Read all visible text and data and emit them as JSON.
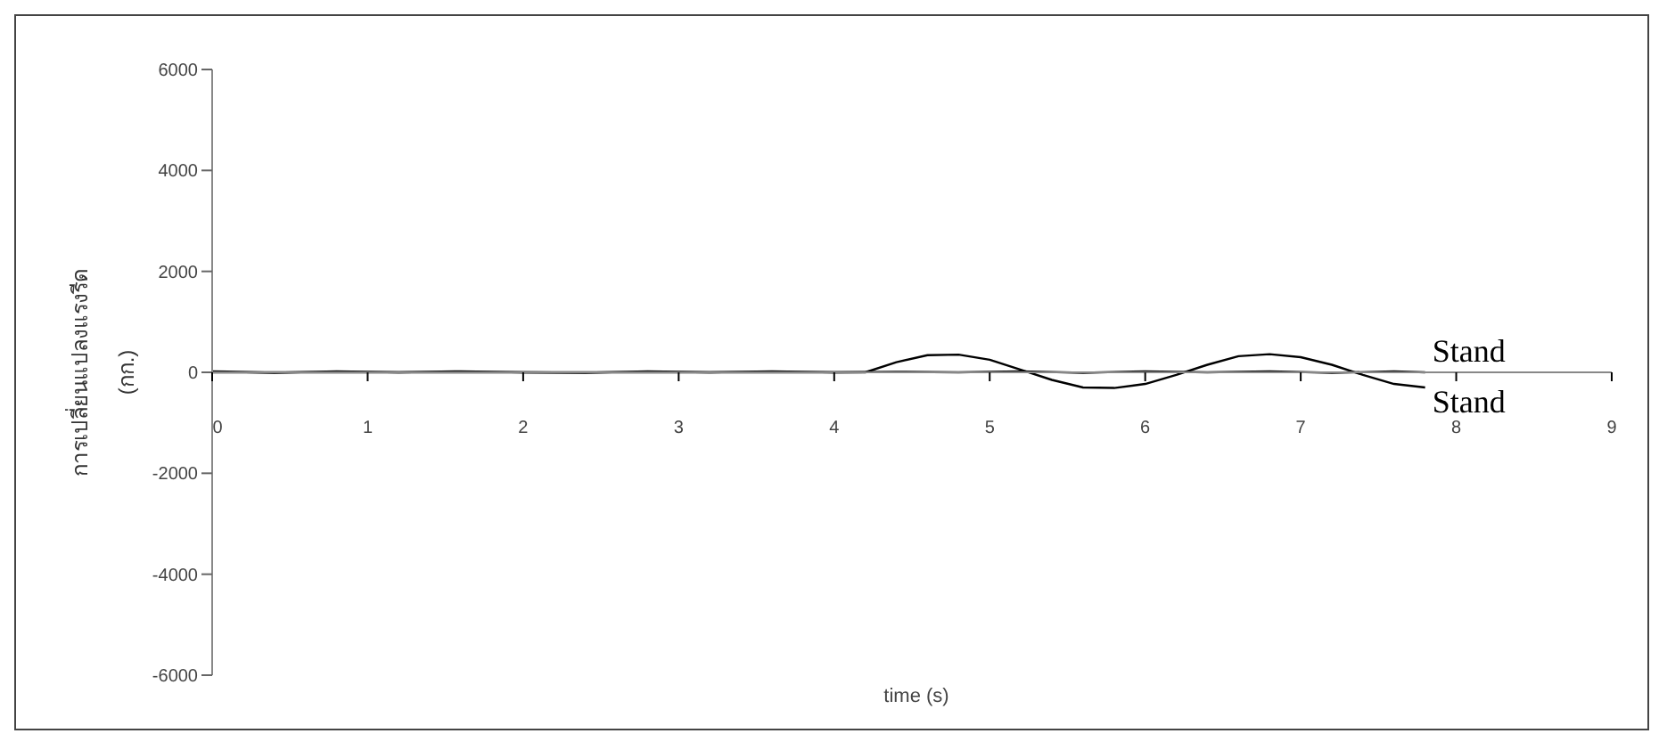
{
  "chart_data": {
    "type": "line",
    "xlabel": "time (s)",
    "ylabel": "การเปลี่ยนแปลงแรงรีด\n(กก.)",
    "xlim": [
      0,
      9
    ],
    "xticks": [
      0,
      1,
      2,
      3,
      4,
      5,
      6,
      7,
      8,
      9
    ],
    "ylim": [
      -6000,
      6000
    ],
    "yticks": [
      -6000,
      -4000,
      -2000,
      0,
      2000,
      4000,
      6000
    ],
    "marker": "none",
    "line_style": "solid",
    "series": [
      {
        "name": "Stand",
        "color": "#000000",
        "x": [
          0,
          0.4,
          0.8,
          1.2,
          1.6,
          2.0,
          2.4,
          2.8,
          3.2,
          3.6,
          4.0,
          4.4,
          4.8,
          5.2,
          5.6,
          6.0,
          6.4,
          6.8,
          7.2,
          7.6,
          7.8
        ],
        "values": [
          20,
          -10,
          20,
          0,
          20,
          0,
          -10,
          20,
          0,
          20,
          0,
          10,
          0,
          20,
          -10,
          20,
          0,
          20,
          -10,
          20,
          0
        ]
      },
      {
        "name": "Stand",
        "color": "#000000",
        "x": [
          0,
          4.2,
          4.4,
          4.6,
          4.8,
          5.0,
          5.2,
          5.4,
          5.6,
          5.8,
          6.0,
          6.2,
          6.4,
          6.6,
          6.8,
          7.0,
          7.2,
          7.4,
          7.6,
          7.8
        ],
        "values": [
          0,
          0,
          200,
          340,
          350,
          250,
          50,
          -150,
          -300,
          -310,
          -230,
          -50,
          150,
          320,
          360,
          300,
          150,
          -50,
          -230,
          -300
        ]
      }
    ]
  }
}
